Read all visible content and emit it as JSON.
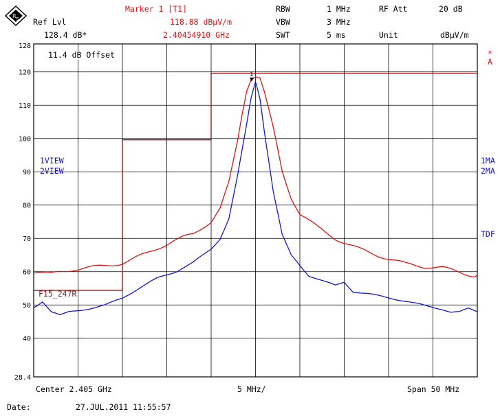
{
  "header": {
    "ref_lvl_label": "Ref Lvl",
    "ref_lvl_value": "128.4 dB*",
    "marker_title": "Marker 1 [T1]",
    "marker_level": "118.88 dBµV/m",
    "marker_freq": "2.40454910 GHz",
    "rbw_label": "RBW",
    "rbw_value": "1 MHz",
    "vbw_label": "VBW",
    "vbw_value": "3 MHz",
    "swt_label": "SWT",
    "swt_value": "5 ms",
    "rf_att_label": "RF Att",
    "rf_att_value": "20 dB",
    "unit_label": "Unit",
    "unit_value": "dBµV/m"
  },
  "annotations": {
    "offset": "11.4 dB Offset",
    "trace1_view": "1VIEW",
    "trace2_view": "2VIEW",
    "limit_line_label": "F15_247R",
    "right_star": "*",
    "right_a": "A",
    "right_1ma": "1MA",
    "right_2ma": "2MA",
    "right_tdf": "TDF",
    "marker_tag": "1"
  },
  "footer": {
    "center": "Center 2.405 GHz",
    "div": "5 MHz/",
    "span": "Span 50 MHz",
    "date_label": "Date:",
    "date_value": "27.JUL.2011  11:55:57"
  },
  "colors": {
    "trace1": "#e01010",
    "trace2": "#1414d0",
    "limit": "#8b1a1a",
    "grid": "#000000"
  },
  "chart_data": {
    "type": "line",
    "xlabel": "",
    "ylabel": "",
    "xlim": [
      2380,
      2430
    ],
    "ylim": [
      28.4,
      128.4
    ],
    "grid": true,
    "yticks": [
      128,
      120,
      110,
      100,
      90,
      80,
      70,
      60,
      50,
      40,
      28.4
    ],
    "series": [
      {
        "name": "1VIEW",
        "x": [
          2380,
          2382,
          2384,
          2386,
          2388,
          2390,
          2392,
          2394,
          2396,
          2398,
          2400,
          2401,
          2402,
          2403,
          2403.5,
          2404,
          2404.5,
          2405,
          2405.5,
          2406,
          2407,
          2408,
          2409,
          2410,
          2412,
          2414,
          2416,
          2418,
          2420,
          2422,
          2424,
          2426,
          2428,
          2430
        ],
        "values": [
          60,
          59,
          60,
          61,
          62,
          63,
          65,
          67,
          69,
          71,
          75,
          79,
          87,
          100,
          108,
          115,
          118.5,
          119.2,
          118.5,
          114,
          103,
          90,
          82,
          77,
          73,
          70,
          68,
          66,
          64,
          62,
          61,
          61,
          60,
          59
        ]
      },
      {
        "name": "2VIEW",
        "x": [
          2380,
          2381,
          2382,
          2383,
          2384,
          2386,
          2388,
          2390,
          2392,
          2394,
          2396,
          2398,
          2400,
          2401,
          2402,
          2403,
          2404,
          2404.5,
          2405,
          2405.5,
          2406,
          2407,
          2408,
          2409,
          2410,
          2411,
          2412,
          2414,
          2415,
          2416,
          2418,
          2420,
          2422,
          2424,
          2426,
          2427,
          2428,
          2429,
          2430
        ],
        "values": [
          49,
          51,
          48,
          47,
          48,
          49,
          50,
          52,
          55,
          58,
          60,
          63,
          67,
          70,
          76,
          89,
          104,
          112,
          117,
          112,
          102,
          84,
          71,
          65,
          62,
          59,
          58,
          56,
          57,
          54,
          53,
          52,
          51,
          50,
          49,
          48,
          48,
          49,
          48
        ]
      },
      {
        "name": "F15_247R",
        "x": [
          2380,
          2390,
          2390,
          2400,
          2400,
          2430
        ],
        "values": [
          54.4,
          54.4,
          99.6,
          99.6,
          119.6,
          119.6
        ]
      }
    ]
  }
}
